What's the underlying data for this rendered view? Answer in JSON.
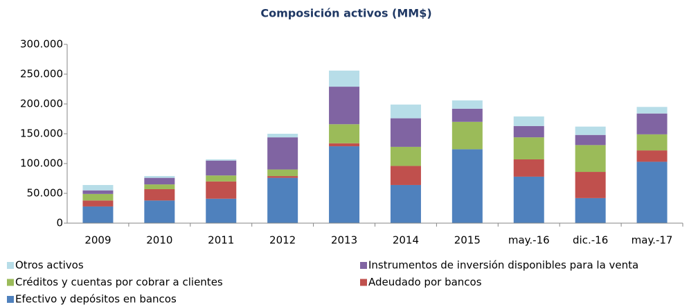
{
  "chart_data": {
    "type": "stacked_bar",
    "title": "Composición activos (MM$)",
    "categories": [
      "2009",
      "2010",
      "2011",
      "2012",
      "2013",
      "2014",
      "2015",
      "may.-16",
      "dic.-16",
      "may.-17"
    ],
    "series": [
      {
        "name": "Efectivo y depósitos en bancos",
        "color": "#4f81bd",
        "values": [
          28000,
          38000,
          41000,
          76000,
          129000,
          64000,
          124000,
          78000,
          42000,
          103000
        ]
      },
      {
        "name": "Adeudado por bancos",
        "color": "#c0504d",
        "values": [
          10000,
          19000,
          29000,
          3000,
          5000,
          32000,
          0,
          29000,
          44000,
          19000
        ]
      },
      {
        "name": "Créditos y cuentas por cobrar a clientes",
        "color": "#9bbb59",
        "values": [
          11000,
          8000,
          10000,
          11000,
          32000,
          32000,
          46000,
          37000,
          45000,
          27000
        ]
      },
      {
        "name": "Instrumentos de inversión disponibles para la venta",
        "color": "#8064a2",
        "values": [
          6000,
          11000,
          25000,
          54000,
          63000,
          48000,
          22000,
          19000,
          17000,
          35000
        ]
      },
      {
        "name": "Otros activos",
        "color": "#b7dde8",
        "values": [
          9000,
          3000,
          2000,
          6000,
          27000,
          23000,
          14000,
          16000,
          14000,
          11000
        ]
      }
    ],
    "ylim": [
      0,
      300000
    ],
    "yticks": [
      0,
      {
        "value": 50000,
        "label": "50.000"
      },
      {
        "value": 100000,
        "label": "100.000"
      },
      {
        "value": 150000,
        "label": "150.000"
      },
      {
        "value": 200000,
        "label": "200.000"
      },
      {
        "value": 250000,
        "label": "250.000"
      },
      {
        "value": 300000,
        "label": "300.000"
      }
    ],
    "grid": false
  }
}
